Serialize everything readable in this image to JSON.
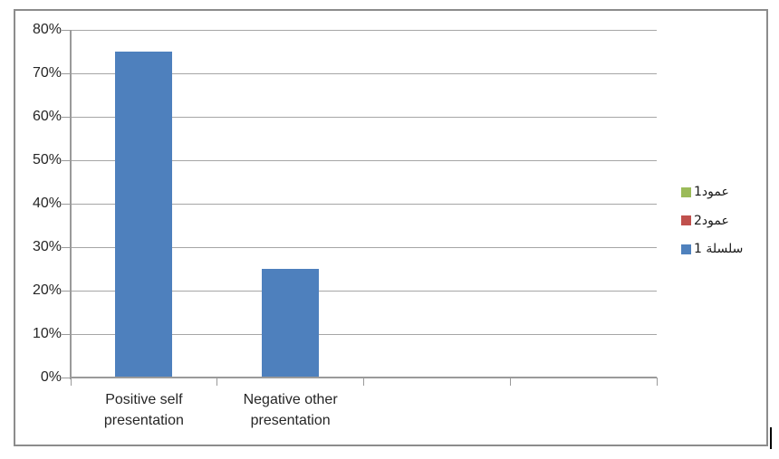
{
  "chart_data": {
    "type": "bar",
    "title": "",
    "xlabel": "",
    "ylabel": "",
    "categories": [
      "Positive self presentation",
      "Negative other presentation",
      "",
      ""
    ],
    "category_label_lines": [
      [
        "Positive self",
        "presentation"
      ],
      [
        "Negative other",
        "presentation"
      ],
      [],
      []
    ],
    "values": [
      75,
      25,
      null,
      null
    ],
    "values_unit": "%",
    "bar_series_name": "سلسلة 1",
    "ylim": [
      0,
      80
    ],
    "ytick_step": 10,
    "ytick_labels": [
      "0%",
      "10%",
      "20%",
      "30%",
      "40%",
      "50%",
      "60%",
      "70%",
      "80%"
    ],
    "grid": true,
    "legend_position": "right",
    "legend": [
      {
        "label": "عمود1",
        "color": "#9BBB59"
      },
      {
        "label": "عمود2",
        "color": "#C0504D"
      },
      {
        "label": "سلسلة 1",
        "color": "#4F81BD"
      }
    ],
    "colors": {
      "bar": "#4E80BD",
      "grid": "#A6A6A6",
      "axis": "#9A9A9A",
      "text": "#262626",
      "frame_border": "#8C8C8C"
    }
  }
}
